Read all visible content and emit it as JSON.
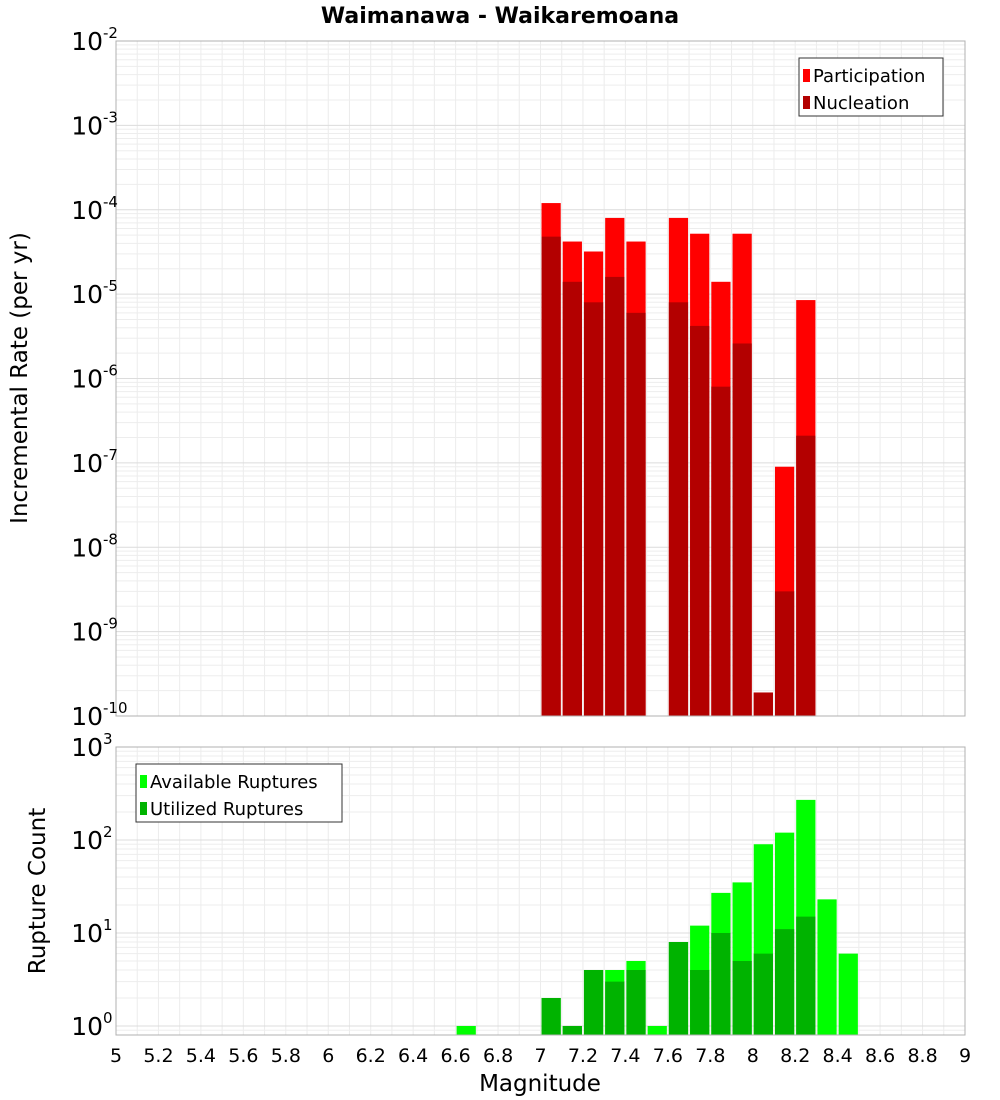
{
  "chart_data": [
    {
      "type": "bar",
      "title": "Waimanawa - Waikaremoana",
      "xlabel": "",
      "ylabel": "Incremental Rate (per yr)",
      "yscale": "log",
      "ylim": [
        1e-10,
        0.01
      ],
      "xlim": [
        5,
        9
      ],
      "bin_width": 0.1,
      "grid": true,
      "legend_position": "top-right",
      "y_ticks": [
        {
          "base": "10",
          "exp": "-10"
        },
        {
          "base": "10",
          "exp": "-9"
        },
        {
          "base": "10",
          "exp": "-8"
        },
        {
          "base": "10",
          "exp": "-7"
        },
        {
          "base": "10",
          "exp": "-6"
        },
        {
          "base": "10",
          "exp": "-5"
        },
        {
          "base": "10",
          "exp": "-4"
        },
        {
          "base": "10",
          "exp": "-3"
        },
        {
          "base": "10",
          "exp": "-2"
        }
      ],
      "series": [
        {
          "name": "Participation",
          "color": "#ff0000",
          "x": [
            7.05,
            7.15,
            7.25,
            7.35,
            7.45,
            7.65,
            7.75,
            7.85,
            7.95,
            8.05,
            8.15,
            8.25
          ],
          "values": [
            0.00012,
            4.2e-05,
            3.2e-05,
            8e-05,
            4.2e-05,
            8e-05,
            5.2e-05,
            1.4e-05,
            5.2e-05,
            1.9e-10,
            9e-08,
            8.5e-06
          ]
        },
        {
          "name": "Nucleation",
          "color": "#b30000",
          "x": [
            7.05,
            7.15,
            7.25,
            7.35,
            7.45,
            7.65,
            7.75,
            7.85,
            7.95,
            8.05,
            8.15,
            8.25
          ],
          "values": [
            4.8e-05,
            1.4e-05,
            8e-06,
            1.6e-05,
            6e-06,
            8e-06,
            4.2e-06,
            8e-07,
            2.6e-06,
            1.9e-10,
            3e-09,
            2.1e-07
          ]
        }
      ]
    },
    {
      "type": "bar",
      "title": "",
      "xlabel": "Magnitude",
      "ylabel": "Rupture Count",
      "yscale": "log",
      "ylim": [
        0.8,
        1000
      ],
      "xlim": [
        5,
        9
      ],
      "bin_width": 0.1,
      "grid": true,
      "legend_position": "top-left",
      "x_ticks": [
        "5",
        "5.2",
        "5.4",
        "5.6",
        "5.8",
        "6",
        "6.2",
        "6.4",
        "6.6",
        "6.8",
        "7",
        "7.2",
        "7.4",
        "7.6",
        "7.8",
        "8",
        "8.2",
        "8.4",
        "8.6",
        "8.8",
        "9"
      ],
      "y_ticks": [
        {
          "base": "10",
          "exp": "0"
        },
        {
          "base": "10",
          "exp": "1"
        },
        {
          "base": "10",
          "exp": "2"
        },
        {
          "base": "10",
          "exp": "3"
        }
      ],
      "series": [
        {
          "name": "Available Ruptures",
          "color": "#00ff00",
          "x": [
            6.65,
            7.05,
            7.15,
            7.25,
            7.35,
            7.45,
            7.55,
            7.65,
            7.75,
            7.85,
            7.95,
            8.05,
            8.15,
            8.25,
            8.35,
            8.45
          ],
          "values": [
            1,
            2,
            1,
            4,
            4,
            5,
            1,
            8,
            12,
            27,
            35,
            90,
            120,
            270,
            23,
            6
          ]
        },
        {
          "name": "Utilized Ruptures",
          "color": "#00b300",
          "x": [
            7.05,
            7.15,
            7.25,
            7.35,
            7.45,
            7.65,
            7.75,
            7.85,
            7.95,
            8.05,
            8.15,
            8.25
          ],
          "values": [
            2,
            1,
            4,
            3,
            4,
            8,
            4,
            10,
            5,
            6,
            11,
            15
          ]
        }
      ]
    }
  ]
}
